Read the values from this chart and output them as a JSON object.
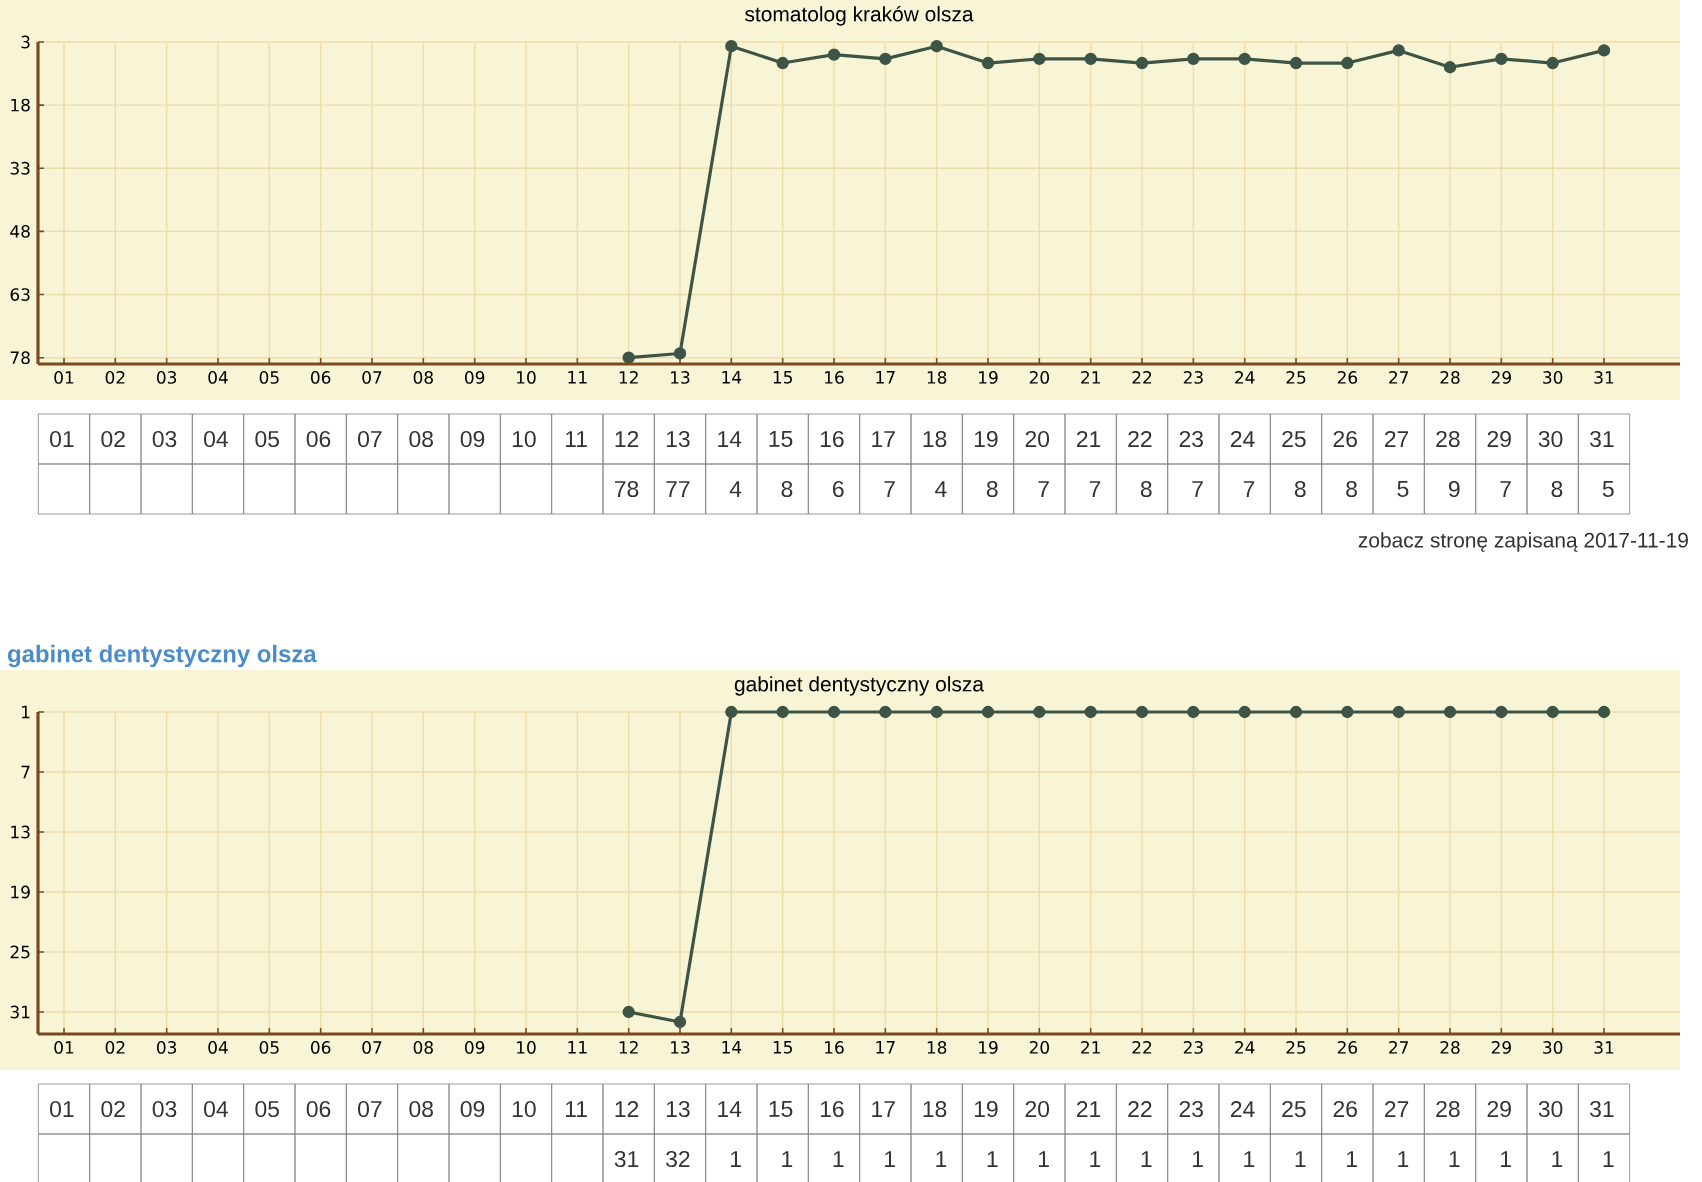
{
  "chart_data": [
    {
      "type": "line",
      "title": "stomatolog kraków olsza",
      "annotations": [
        "zobacz stronę zapisaną 2017-11-19"
      ],
      "categories": [
        "01",
        "02",
        "03",
        "04",
        "05",
        "06",
        "07",
        "08",
        "09",
        "10",
        "11",
        "12",
        "13",
        "14",
        "15",
        "16",
        "17",
        "18",
        "19",
        "20",
        "21",
        "22",
        "23",
        "24",
        "25",
        "26",
        "27",
        "28",
        "29",
        "30",
        "31"
      ],
      "values": [
        null,
        null,
        null,
        null,
        null,
        null,
        null,
        null,
        null,
        null,
        null,
        78,
        77,
        4,
        8,
        6,
        7,
        4,
        8,
        7,
        7,
        8,
        7,
        7,
        8,
        8,
        5,
        9,
        7,
        8,
        5
      ],
      "color": "#3d5446",
      "ylim": [
        79.5,
        3
      ],
      "yticks": [
        3,
        18,
        33,
        48,
        63,
        78
      ],
      "grid": true,
      "marker": "circle",
      "data_labels": true
    },
    {
      "type": "line",
      "title": "gabinet dentystyczny olsza",
      "subtitle": "gabinet dentystyczny olsza",
      "categories": [
        "01",
        "02",
        "03",
        "04",
        "05",
        "06",
        "07",
        "08",
        "09",
        "10",
        "11",
        "12",
        "13",
        "14",
        "15",
        "16",
        "17",
        "18",
        "19",
        "20",
        "21",
        "22",
        "23",
        "24",
        "25",
        "26",
        "27",
        "28",
        "29",
        "30",
        "31"
      ],
      "values": [
        null,
        null,
        null,
        null,
        null,
        null,
        null,
        null,
        null,
        null,
        null,
        31,
        32,
        1,
        1,
        1,
        1,
        1,
        1,
        1,
        1,
        1,
        1,
        1,
        1,
        1,
        1,
        1,
        1,
        1,
        1
      ],
      "color": "#3d5446",
      "ylim": [
        33.2,
        1
      ],
      "yticks": [
        1,
        7,
        13,
        19,
        25,
        31
      ],
      "grid": true,
      "marker": "circle",
      "data_labels": true
    }
  ]
}
